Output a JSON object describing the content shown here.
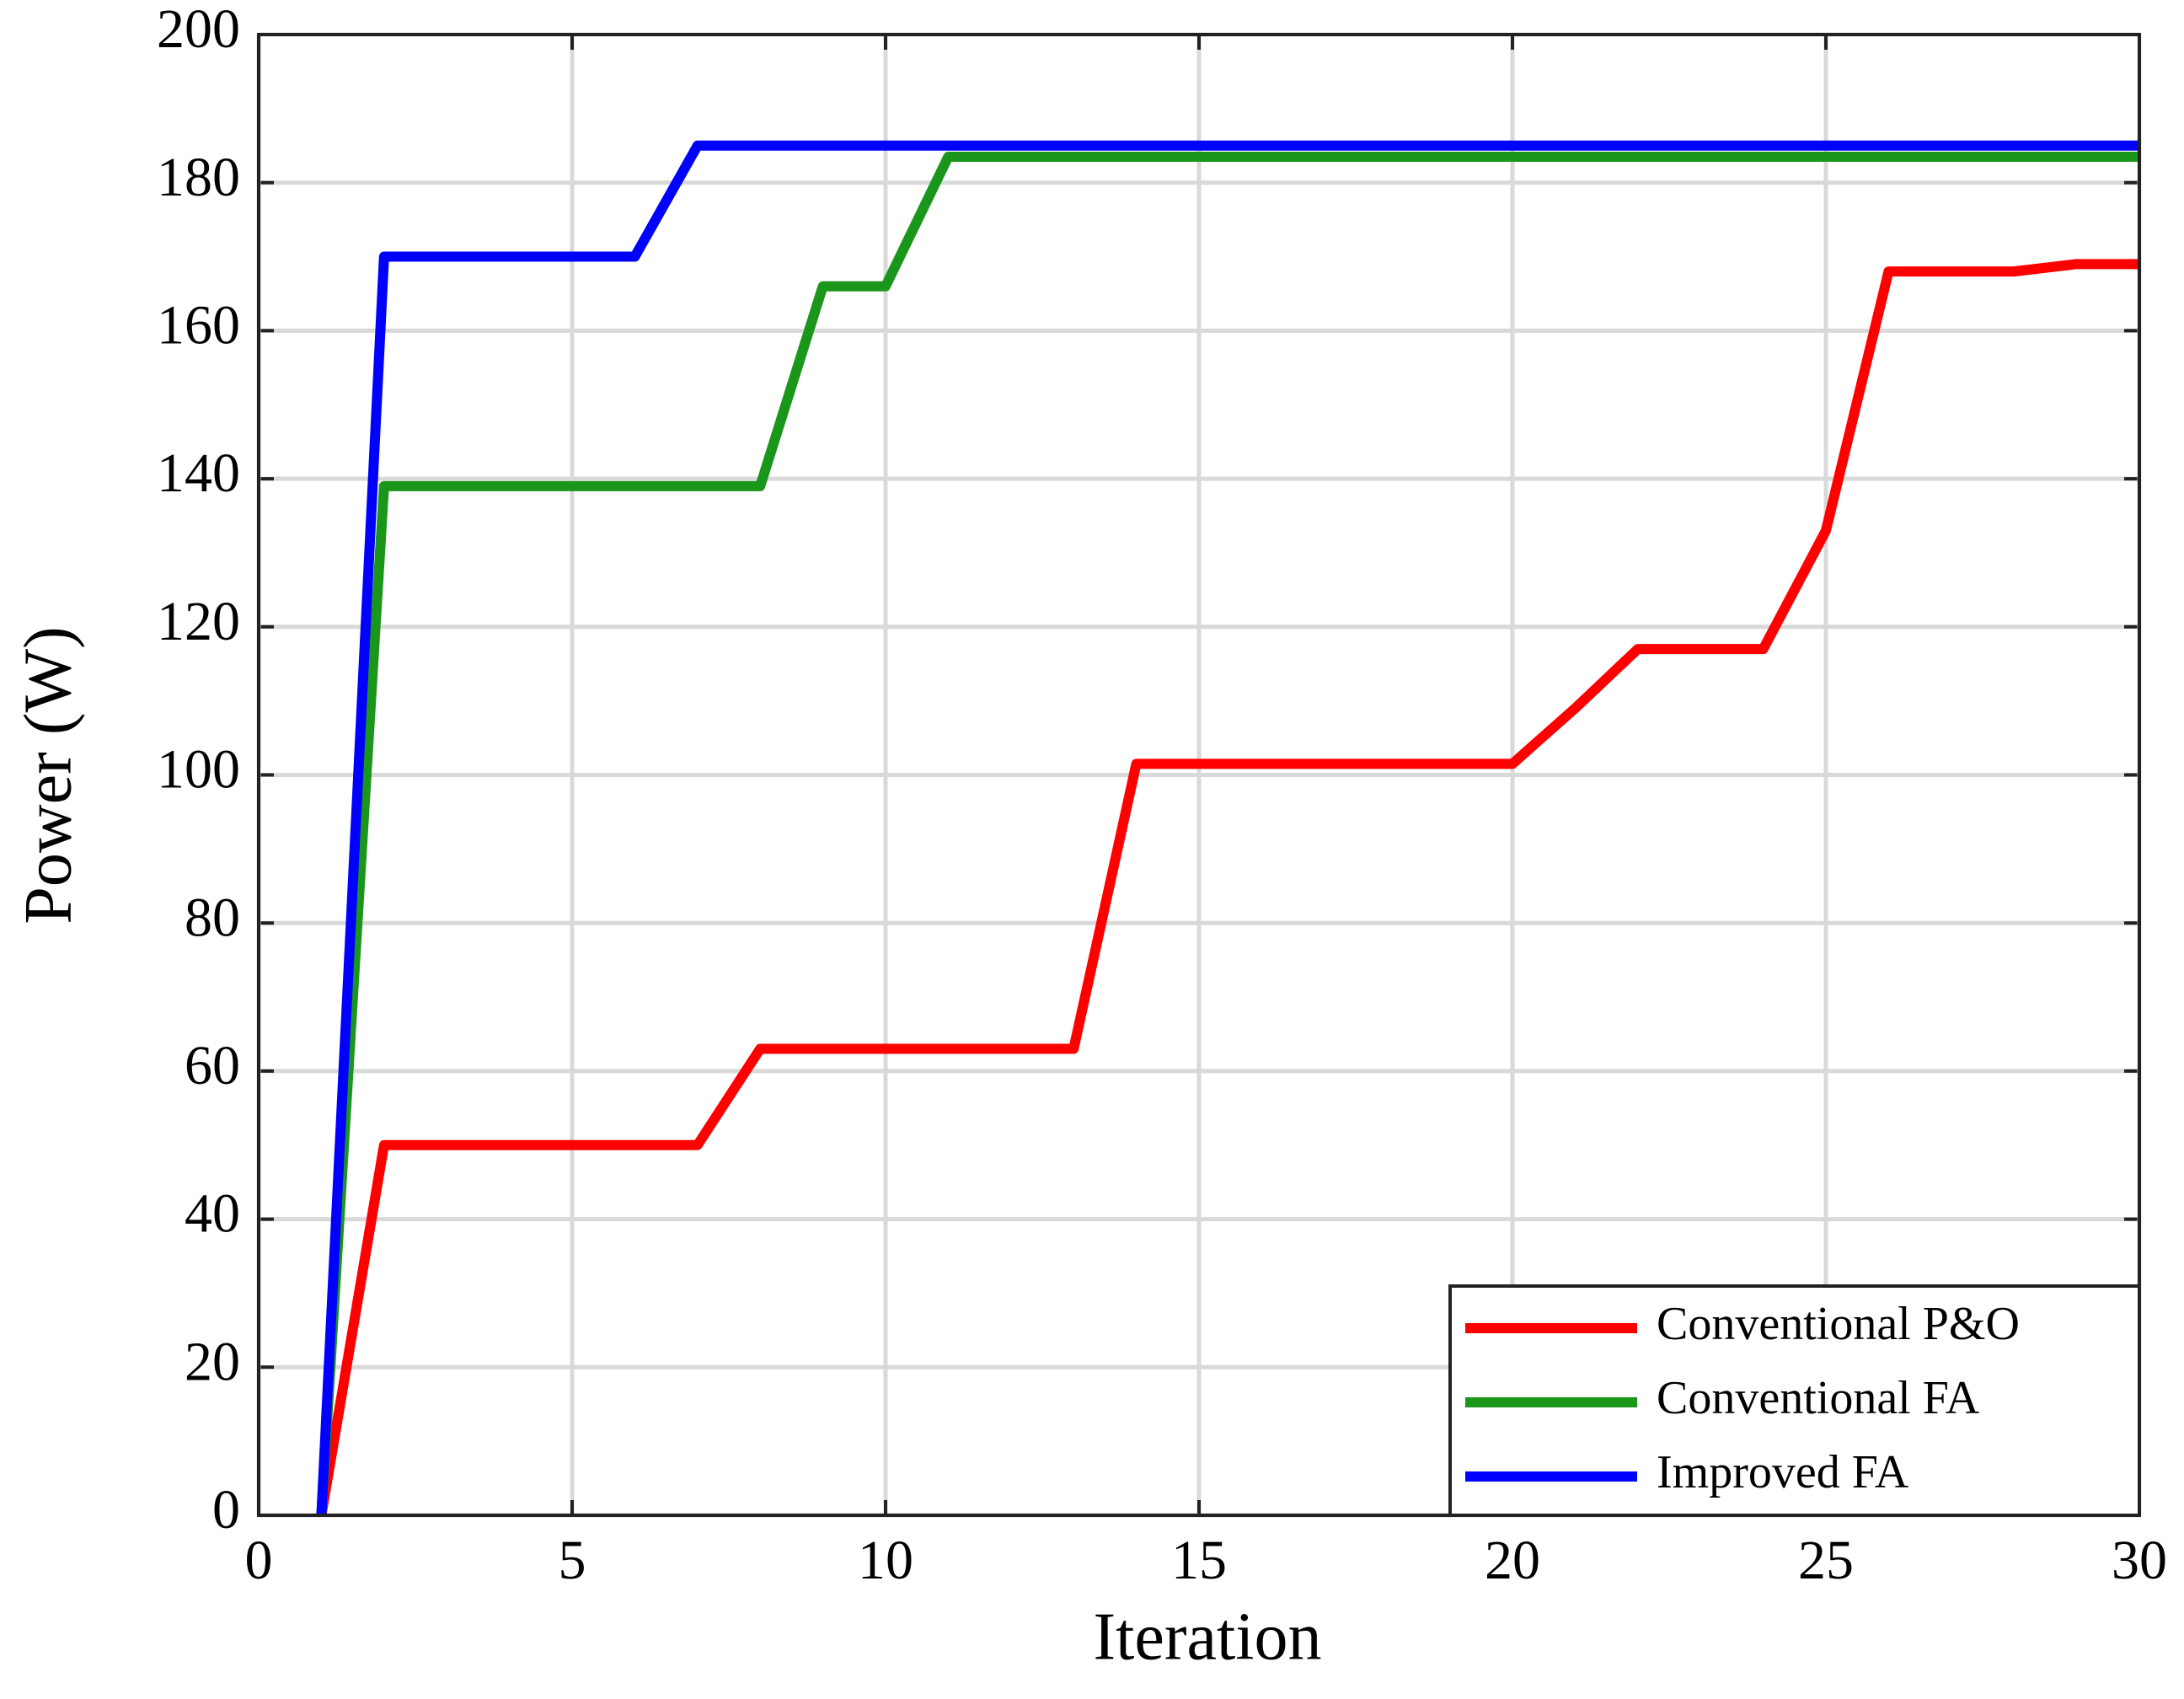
{
  "chart_data": {
    "type": "line",
    "x": [
      1,
      2,
      3,
      4,
      5,
      6,
      7,
      8,
      9,
      10,
      11,
      12,
      13,
      14,
      15,
      16,
      17,
      18,
      19,
      20,
      21,
      22,
      23,
      24,
      25,
      26,
      27,
      28,
      29,
      30
    ],
    "series": [
      {
        "name": "Conventional P&O",
        "color": "#ff0000",
        "values": [
          0,
          50,
          50,
          50,
          50,
          50,
          50,
          63,
          63,
          63,
          63,
          63,
          63,
          101.5,
          101.5,
          101.5,
          101.5,
          101.5,
          101.5,
          101.5,
          109,
          117,
          117,
          117,
          133,
          168,
          168,
          168,
          169,
          169
        ]
      },
      {
        "name": "Conventional FA",
        "color": "#1a961a",
        "values": [
          0,
          139,
          139,
          139,
          139,
          139,
          139,
          139,
          166,
          166,
          183.5,
          183.5,
          183.5,
          183.5,
          183.5,
          183.5,
          183.5,
          183.5,
          183.5,
          183.5,
          183.5,
          183.5,
          183.5,
          183.5,
          183.5,
          183.5,
          183.5,
          183.5,
          183.5,
          183.5
        ]
      },
      {
        "name": "Improved FA",
        "color": "#0000ff",
        "values": [
          0,
          170,
          170,
          170,
          170,
          170,
          185,
          185,
          185,
          185,
          185,
          185,
          185,
          185,
          185,
          185,
          185,
          185,
          185,
          185,
          185,
          185,
          185,
          185,
          185,
          185,
          185,
          185,
          185,
          185
        ]
      }
    ],
    "xlabel": "Iteration",
    "ylabel": "Power (W)",
    "xlim": [
      0,
      30
    ],
    "xticks": [
      0,
      5,
      10,
      15,
      20,
      25,
      30
    ],
    "ylim": [
      0,
      200
    ],
    "yticks": [
      0,
      20,
      40,
      60,
      80,
      100,
      120,
      140,
      160,
      180,
      200
    ],
    "grid": true,
    "legend": "lower right"
  }
}
